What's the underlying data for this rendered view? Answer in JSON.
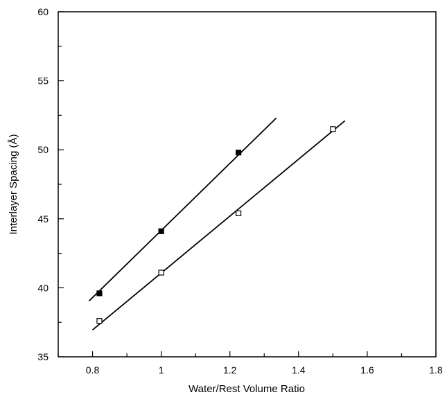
{
  "chart_data": {
    "type": "scatter",
    "title": "",
    "xlabel": "Water/Rest Volume Ratio",
    "ylabel": "Interlayer Spacing (Å)",
    "xlim": [
      0.7,
      1.8
    ],
    "ylim": [
      35,
      60
    ],
    "xticks": [
      0.8,
      1,
      1.2,
      1.4,
      1.6,
      1.8
    ],
    "xtick_labels": [
      "0.8",
      "1",
      "1.2",
      "1.4",
      "1.6",
      "1.8"
    ],
    "yticks": [
      35,
      40,
      45,
      50,
      55,
      60
    ],
    "ytick_labels": [
      "35",
      "40",
      "45",
      "50",
      "55",
      "60"
    ],
    "grid": false,
    "series": [
      {
        "marker": "filled-square",
        "color": "#000000",
        "x": [
          0.82,
          1.0,
          1.225
        ],
        "y": [
          39.6,
          44.1,
          49.8
        ],
        "fit_line": {
          "x": [
            0.79,
            1.335
          ],
          "y": [
            39.05,
            52.3
          ]
        }
      },
      {
        "marker": "open-square",
        "color": "#000000",
        "x": [
          0.82,
          1.0,
          1.225,
          1.5
        ],
        "y": [
          37.6,
          41.1,
          45.4,
          51.5
        ],
        "fit_line": {
          "x": [
            0.8,
            1.535
          ],
          "y": [
            36.95,
            52.1
          ]
        }
      }
    ]
  }
}
